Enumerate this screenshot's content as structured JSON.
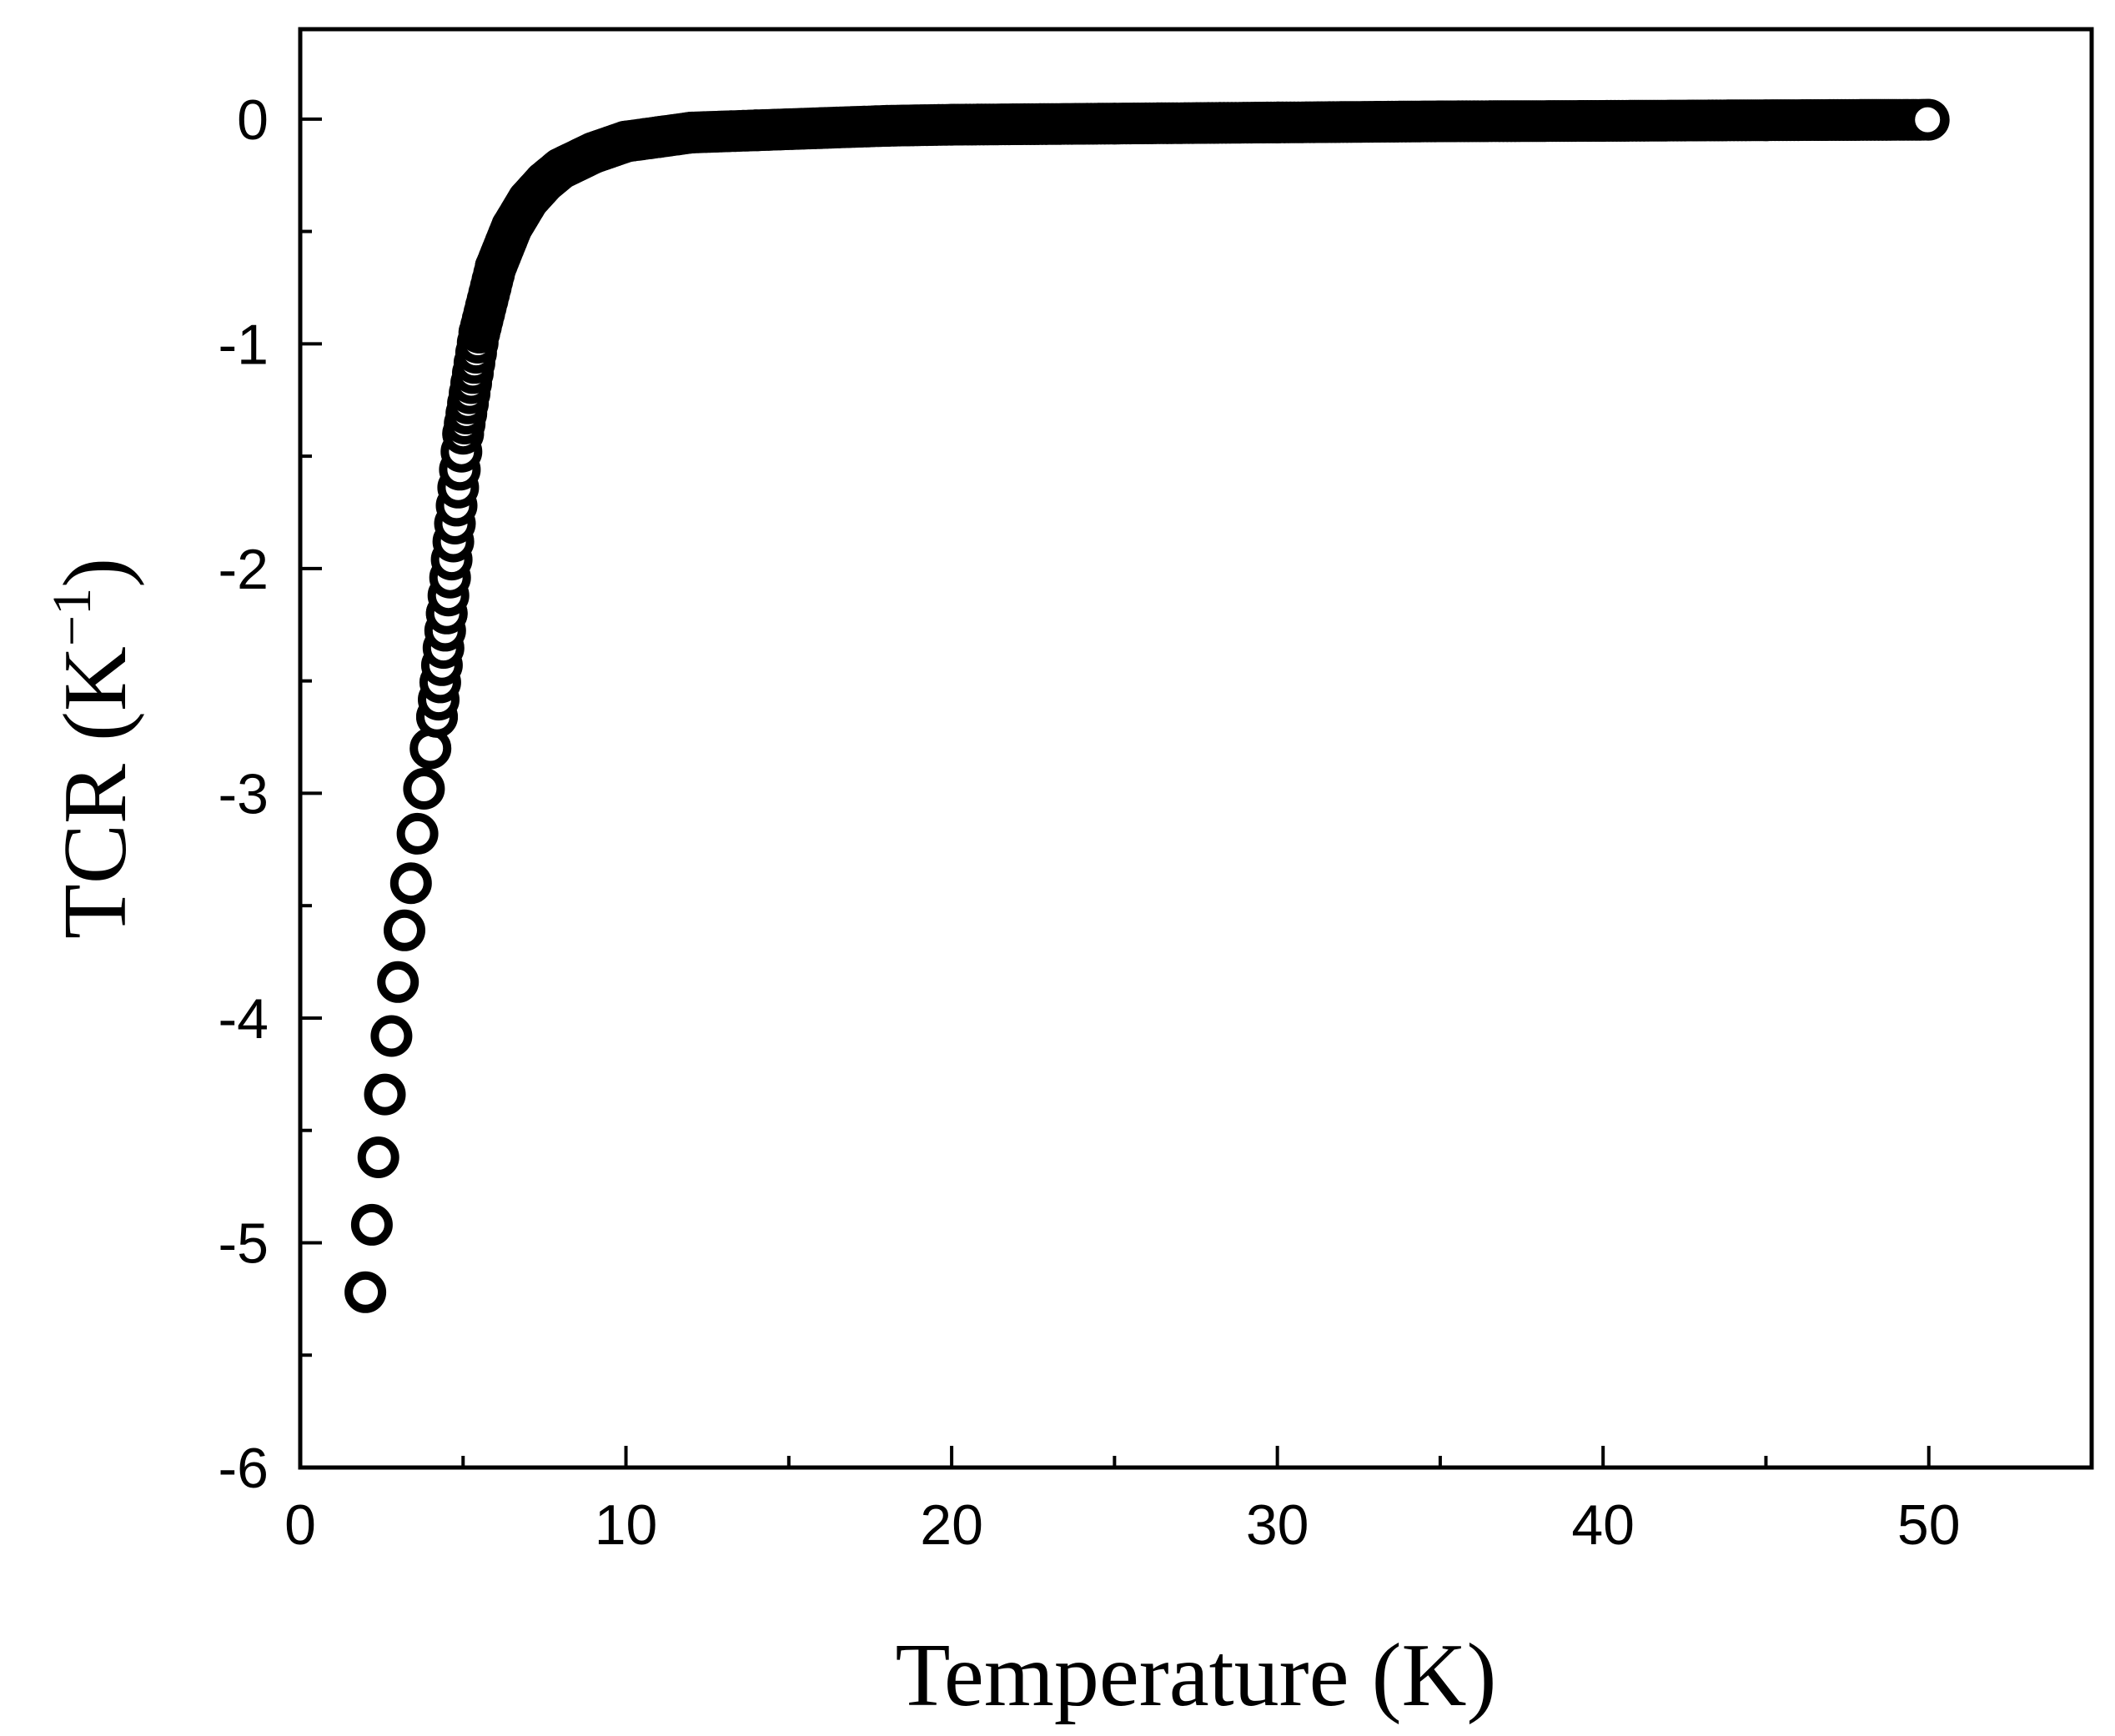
{
  "chart_data": {
    "type": "scatter",
    "title": "",
    "xlabel": "Temperature (K)",
    "ylabel": {
      "base": "TCR (K",
      "superscript": "−1",
      "close": ")"
    },
    "xlim": [
      0,
      55
    ],
    "ylim": [
      -6,
      0.4
    ],
    "x_ticks": [
      0,
      10,
      20,
      30,
      40,
      50
    ],
    "x_tick_labels": [
      "0",
      "10",
      "20",
      "30",
      "40",
      "50"
    ],
    "x_minor_ticks": [
      5,
      15,
      25,
      35,
      45
    ],
    "y_ticks": [
      0,
      -1,
      -2,
      -3,
      -4,
      -5,
      -6
    ],
    "y_tick_labels": [
      "0",
      "-1",
      "-2",
      "-3",
      "-4",
      "-5",
      "-6"
    ],
    "y_minor_ticks": [
      -0.5,
      -1.5,
      -2.5,
      -3.5,
      -4.5,
      -5.5
    ],
    "grid": false,
    "legend": "none",
    "marker": "open-circle",
    "marker_color": "#000000",
    "series": [
      {
        "x": [
          2.0,
          2.2,
          2.4,
          2.6,
          2.8,
          3.0,
          3.2,
          3.4,
          3.6,
          3.8,
          4.0,
          4.2,
          4.5,
          5.0,
          5.5,
          6.0,
          6.5,
          7.0,
          7.5,
          8.0,
          9.0,
          10.0,
          11.0,
          12.0,
          14.0,
          16.0,
          18.0,
          20.0,
          25.0,
          30.0,
          35.0,
          40.0,
          45.0,
          50.0
        ],
        "y": [
          -5.22,
          -4.92,
          -4.62,
          -4.34,
          -4.08,
          -3.84,
          -3.61,
          -3.4,
          -3.18,
          -2.98,
          -2.8,
          -2.66,
          -2.2,
          -1.4,
          -0.95,
          -0.66,
          -0.48,
          -0.36,
          -0.28,
          -0.22,
          -0.15,
          -0.1,
          -0.08,
          -0.06,
          -0.05,
          -0.04,
          -0.03,
          -0.025,
          -0.02,
          -0.015,
          -0.01,
          -0.008,
          -0.005,
          -0.003
        ]
      }
    ]
  }
}
